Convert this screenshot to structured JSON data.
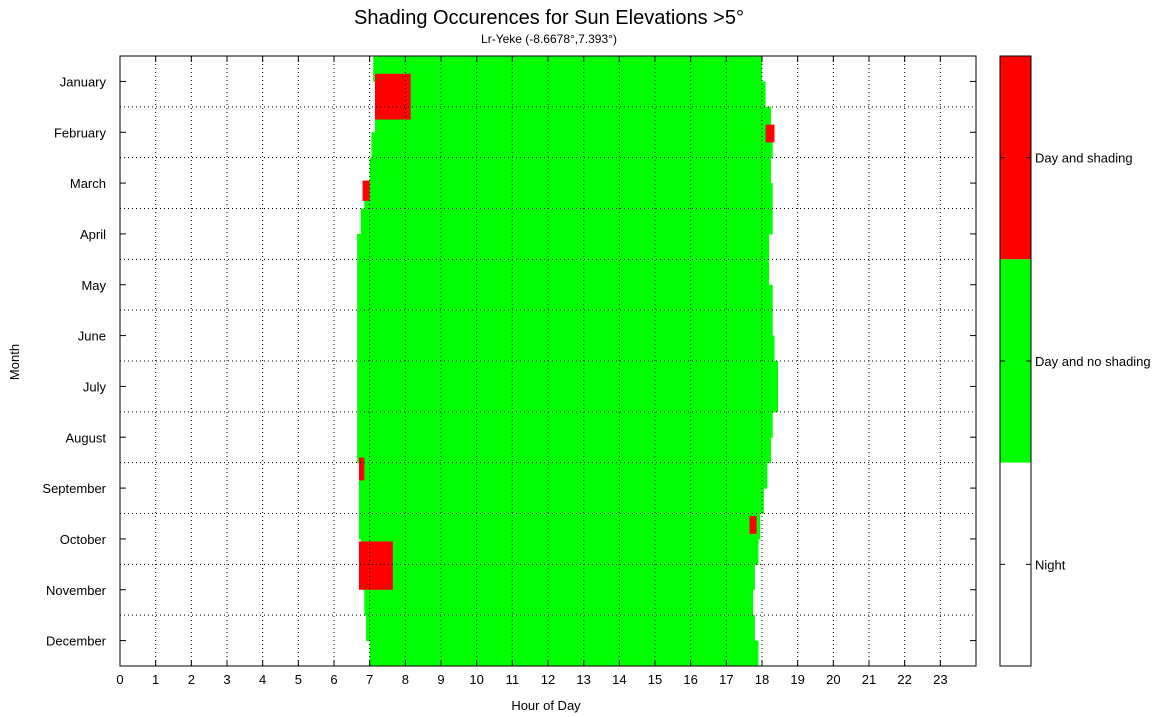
{
  "chart_data": {
    "type": "heatmap",
    "title": "Shading Occurences for Sun Elevations >5°",
    "subtitle": "Lr-Yeke (-8.6678°,7.393°)",
    "xlabel": "Hour of Day",
    "ylabel": "Month",
    "xlim": [
      0,
      24
    ],
    "x_ticks": [
      "0",
      "1",
      "2",
      "3",
      "4",
      "5",
      "6",
      "7",
      "8",
      "9",
      "10",
      "11",
      "12",
      "13",
      "14",
      "15",
      "16",
      "17",
      "18",
      "19",
      "20",
      "21",
      "22",
      "23"
    ],
    "y_ticks": [
      "January",
      "February",
      "March",
      "April",
      "May",
      "June",
      "July",
      "August",
      "September",
      "October",
      "November",
      "December"
    ],
    "grid": true,
    "colors": {
      "night": "#ffffff",
      "day_no_shading": "#00ff00",
      "day_shading": "#ff0000"
    },
    "legend": [
      {
        "label": "Day and shading",
        "color": "#ff0000"
      },
      {
        "label": "Day and no shading",
        "color": "#00ff00"
      },
      {
        "label": "Night",
        "color": "#ffffff"
      }
    ],
    "daylight": [
      {
        "month": 0.0,
        "sunrise": 7.1,
        "sunset": 18.0
      },
      {
        "month": 0.5,
        "sunrise": 7.15,
        "sunset": 18.1
      },
      {
        "month": 1.0,
        "sunrise": 7.15,
        "sunset": 18.25
      },
      {
        "month": 1.5,
        "sunrise": 7.05,
        "sunset": 18.3
      },
      {
        "month": 2.0,
        "sunrise": 7.0,
        "sunset": 18.25
      },
      {
        "month": 2.5,
        "sunrise": 6.85,
        "sunset": 18.3
      },
      {
        "month": 3.0,
        "sunrise": 6.75,
        "sunset": 18.3
      },
      {
        "month": 3.5,
        "sunrise": 6.65,
        "sunset": 18.2
      },
      {
        "month": 4.0,
        "sunrise": 6.65,
        "sunset": 18.2
      },
      {
        "month": 4.5,
        "sunrise": 6.65,
        "sunset": 18.3
      },
      {
        "month": 5.0,
        "sunrise": 6.65,
        "sunset": 18.3
      },
      {
        "month": 5.5,
        "sunrise": 6.65,
        "sunset": 18.35
      },
      {
        "month": 6.0,
        "sunrise": 6.65,
        "sunset": 18.45
      },
      {
        "month": 6.5,
        "sunrise": 6.65,
        "sunset": 18.45
      },
      {
        "month": 7.0,
        "sunrise": 6.65,
        "sunset": 18.3
      },
      {
        "month": 7.5,
        "sunrise": 6.65,
        "sunset": 18.25
      },
      {
        "month": 8.0,
        "sunrise": 6.7,
        "sunset": 18.15
      },
      {
        "month": 8.5,
        "sunrise": 6.7,
        "sunset": 18.05
      },
      {
        "month": 9.0,
        "sunrise": 6.7,
        "sunset": 17.95
      },
      {
        "month": 9.5,
        "sunrise": 6.75,
        "sunset": 17.9
      },
      {
        "month": 10.0,
        "sunrise": 6.8,
        "sunset": 17.8
      },
      {
        "month": 10.5,
        "sunrise": 6.85,
        "sunset": 17.75
      },
      {
        "month": 11.0,
        "sunrise": 6.9,
        "sunset": 17.8
      },
      {
        "month": 11.5,
        "sunrise": 7.0,
        "sunset": 17.9
      }
    ],
    "shading_regions": [
      {
        "month_start": 0.35,
        "month_end": 1.25,
        "hour_start": 7.15,
        "hour_end": 8.15
      },
      {
        "month_start": 1.35,
        "month_end": 1.7,
        "hour_start": 18.1,
        "hour_end": 18.35
      },
      {
        "month_start": 2.45,
        "month_end": 2.85,
        "hour_start": 6.8,
        "hour_end": 7.0
      },
      {
        "month_start": 7.9,
        "month_end": 8.35,
        "hour_start": 6.7,
        "hour_end": 6.85
      },
      {
        "month_start": 9.05,
        "month_end": 9.4,
        "hour_start": 17.65,
        "hour_end": 17.85
      },
      {
        "month_start": 9.55,
        "month_end": 10.5,
        "hour_start": 6.7,
        "hour_end": 7.65
      }
    ]
  }
}
